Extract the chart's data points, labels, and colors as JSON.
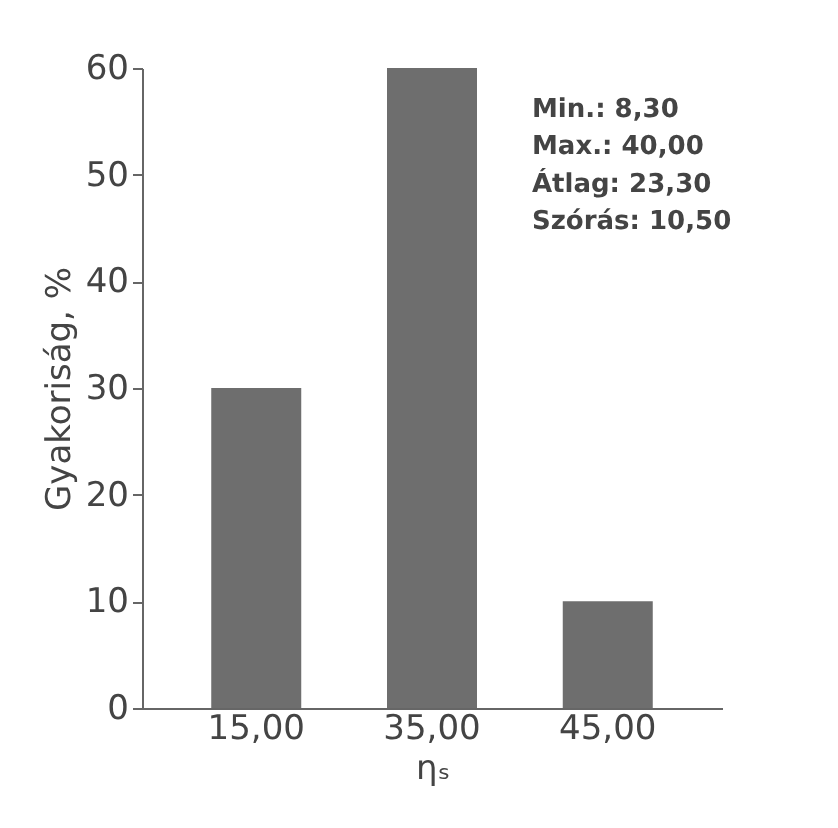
{
  "chart_data": {
    "type": "bar",
    "categories": [
      "15,00",
      "35,00",
      "45,00"
    ],
    "values": [
      30,
      60,
      10
    ],
    "color": "#6e6e6e",
    "xlabel": "ηₛ",
    "ylabel": "Gyakoriság, %",
    "ylim": [
      0,
      60
    ],
    "yticks": [
      0,
      10,
      20,
      30,
      40,
      50,
      60
    ],
    "grid": false,
    "annotations": [
      "Min.: 8,30",
      "Max.: 40,00",
      "Átlag: 23,30",
      "Szórás: 10,50"
    ]
  }
}
